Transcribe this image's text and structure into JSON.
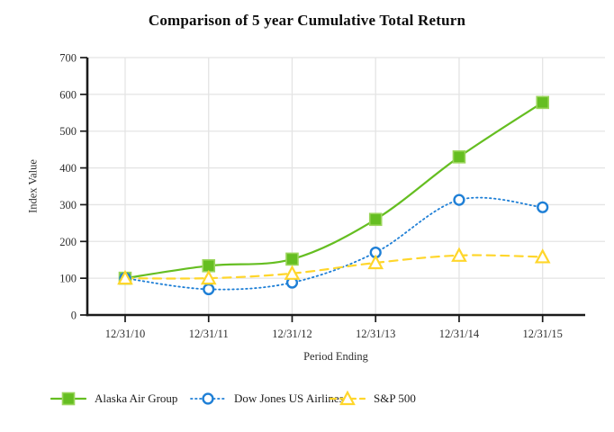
{
  "chart_data": {
    "type": "line",
    "title": "Comparison of 5 year Cumulative Total Return",
    "xlabel": "Period Ending",
    "ylabel": "Index Value",
    "categories": [
      "12/31/10",
      "12/31/11",
      "12/31/12",
      "12/31/13",
      "12/31/14",
      "12/31/15"
    ],
    "yticks": [
      0,
      100,
      200,
      300,
      400,
      500,
      600,
      700
    ],
    "ylim": [
      0,
      700
    ],
    "grid": true,
    "legend_position": "bottom",
    "series": [
      {
        "name": "Alaska Air Group",
        "values": [
          100,
          134,
          152,
          260,
          430,
          578
        ],
        "color": "#65BE21",
        "marker_border_color": "#9BD55C",
        "marker": "square",
        "line_style": "solid"
      },
      {
        "name": "Dow Jones US Airlines",
        "values": [
          100,
          70,
          88,
          170,
          313,
          293
        ],
        "color": "#1E7FD6",
        "marker_border_color": "#1E7FD6",
        "marker": "circle",
        "line_style": "dotted"
      },
      {
        "name": "S&P 500",
        "values": [
          100,
          100,
          113,
          142,
          162,
          158
        ],
        "color": "#FFD62B",
        "marker_border_color": "#FFD92B",
        "marker": "triangle",
        "line_style": "dashed"
      }
    ],
    "colors": {
      "gridline": "#E4E4E4",
      "axis": "#1A1A1A",
      "marker_fill_open": "#FFFFFF"
    }
  }
}
